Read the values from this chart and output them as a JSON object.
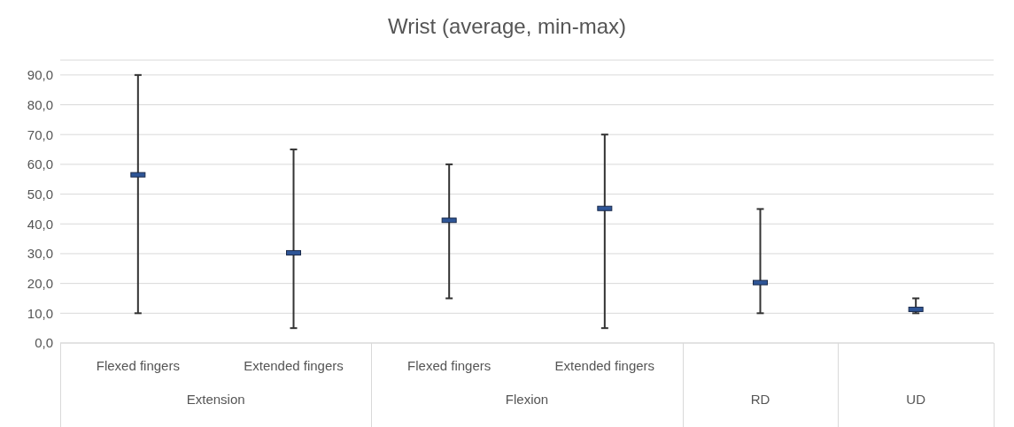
{
  "chart_data": {
    "type": "scatter",
    "title": "Wrist (average, min-max)",
    "categories": [
      "Flexed fingers",
      "Extended fingers",
      "Flexed fingers",
      "Extended fingers",
      null,
      null
    ],
    "annotations": [
      "Extension",
      "Flexion",
      "RD",
      "UD"
    ],
    "series": [
      {
        "color": "#2e5597",
        "values": [
          56.5,
          30.3,
          41.2,
          45.2,
          20.3,
          11.3
        ],
        "errors": [
          [
            10,
            90
          ],
          [
            5,
            65
          ],
          [
            15,
            60
          ],
          [
            5,
            70
          ],
          [
            10,
            45
          ],
          [
            10,
            15
          ]
        ]
      }
    ],
    "ylim": [
      0,
      95
    ],
    "yticks": [
      {
        "value": 0,
        "label": "0,0"
      },
      {
        "value": 10,
        "label": "10,0"
      },
      {
        "value": 20,
        "label": "20,0"
      },
      {
        "value": 30,
        "label": "30,0"
      },
      {
        "value": 40,
        "label": "40,0"
      },
      {
        "value": 50,
        "label": "50,0"
      },
      {
        "value": 60,
        "label": "60,0"
      },
      {
        "value": 70,
        "label": "70,0"
      },
      {
        "value": 80,
        "label": "80,0"
      },
      {
        "value": 90,
        "label": "90,0"
      }
    ],
    "grid": "y",
    "marker": "square"
  }
}
